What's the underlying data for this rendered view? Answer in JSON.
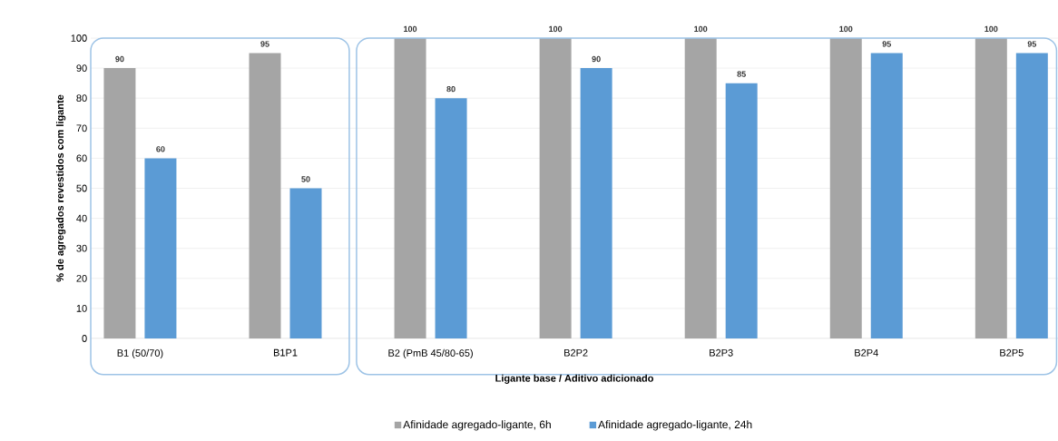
{
  "chart_data": {
    "type": "bar",
    "xlabel": "Ligante base / Aditivo adicionado",
    "ylabel": "% de agregados revestidos com ligante",
    "categories": [
      "B1 (50/70)",
      "B1P1",
      "B2 (PmB 45/80-65)",
      "B2P2",
      "B2P3",
      "B2P4",
      "B2P5"
    ],
    "series": [
      {
        "name": "Afinidade agregado-ligante, 6h",
        "color": "#a5a5a5",
        "values": [
          90,
          95,
          100,
          100,
          100,
          100,
          100
        ]
      },
      {
        "name": "Afinidade agregado-ligante, 24h",
        "color": "#5b9bd5",
        "values": [
          60,
          50,
          80,
          90,
          85,
          95,
          95
        ]
      }
    ],
    "ylim": [
      0,
      100
    ],
    "yticks": [
      0,
      10,
      20,
      30,
      40,
      50,
      60,
      70,
      80,
      90,
      100
    ],
    "grid": "y",
    "legend": "bottom",
    "data_labels": true
  }
}
